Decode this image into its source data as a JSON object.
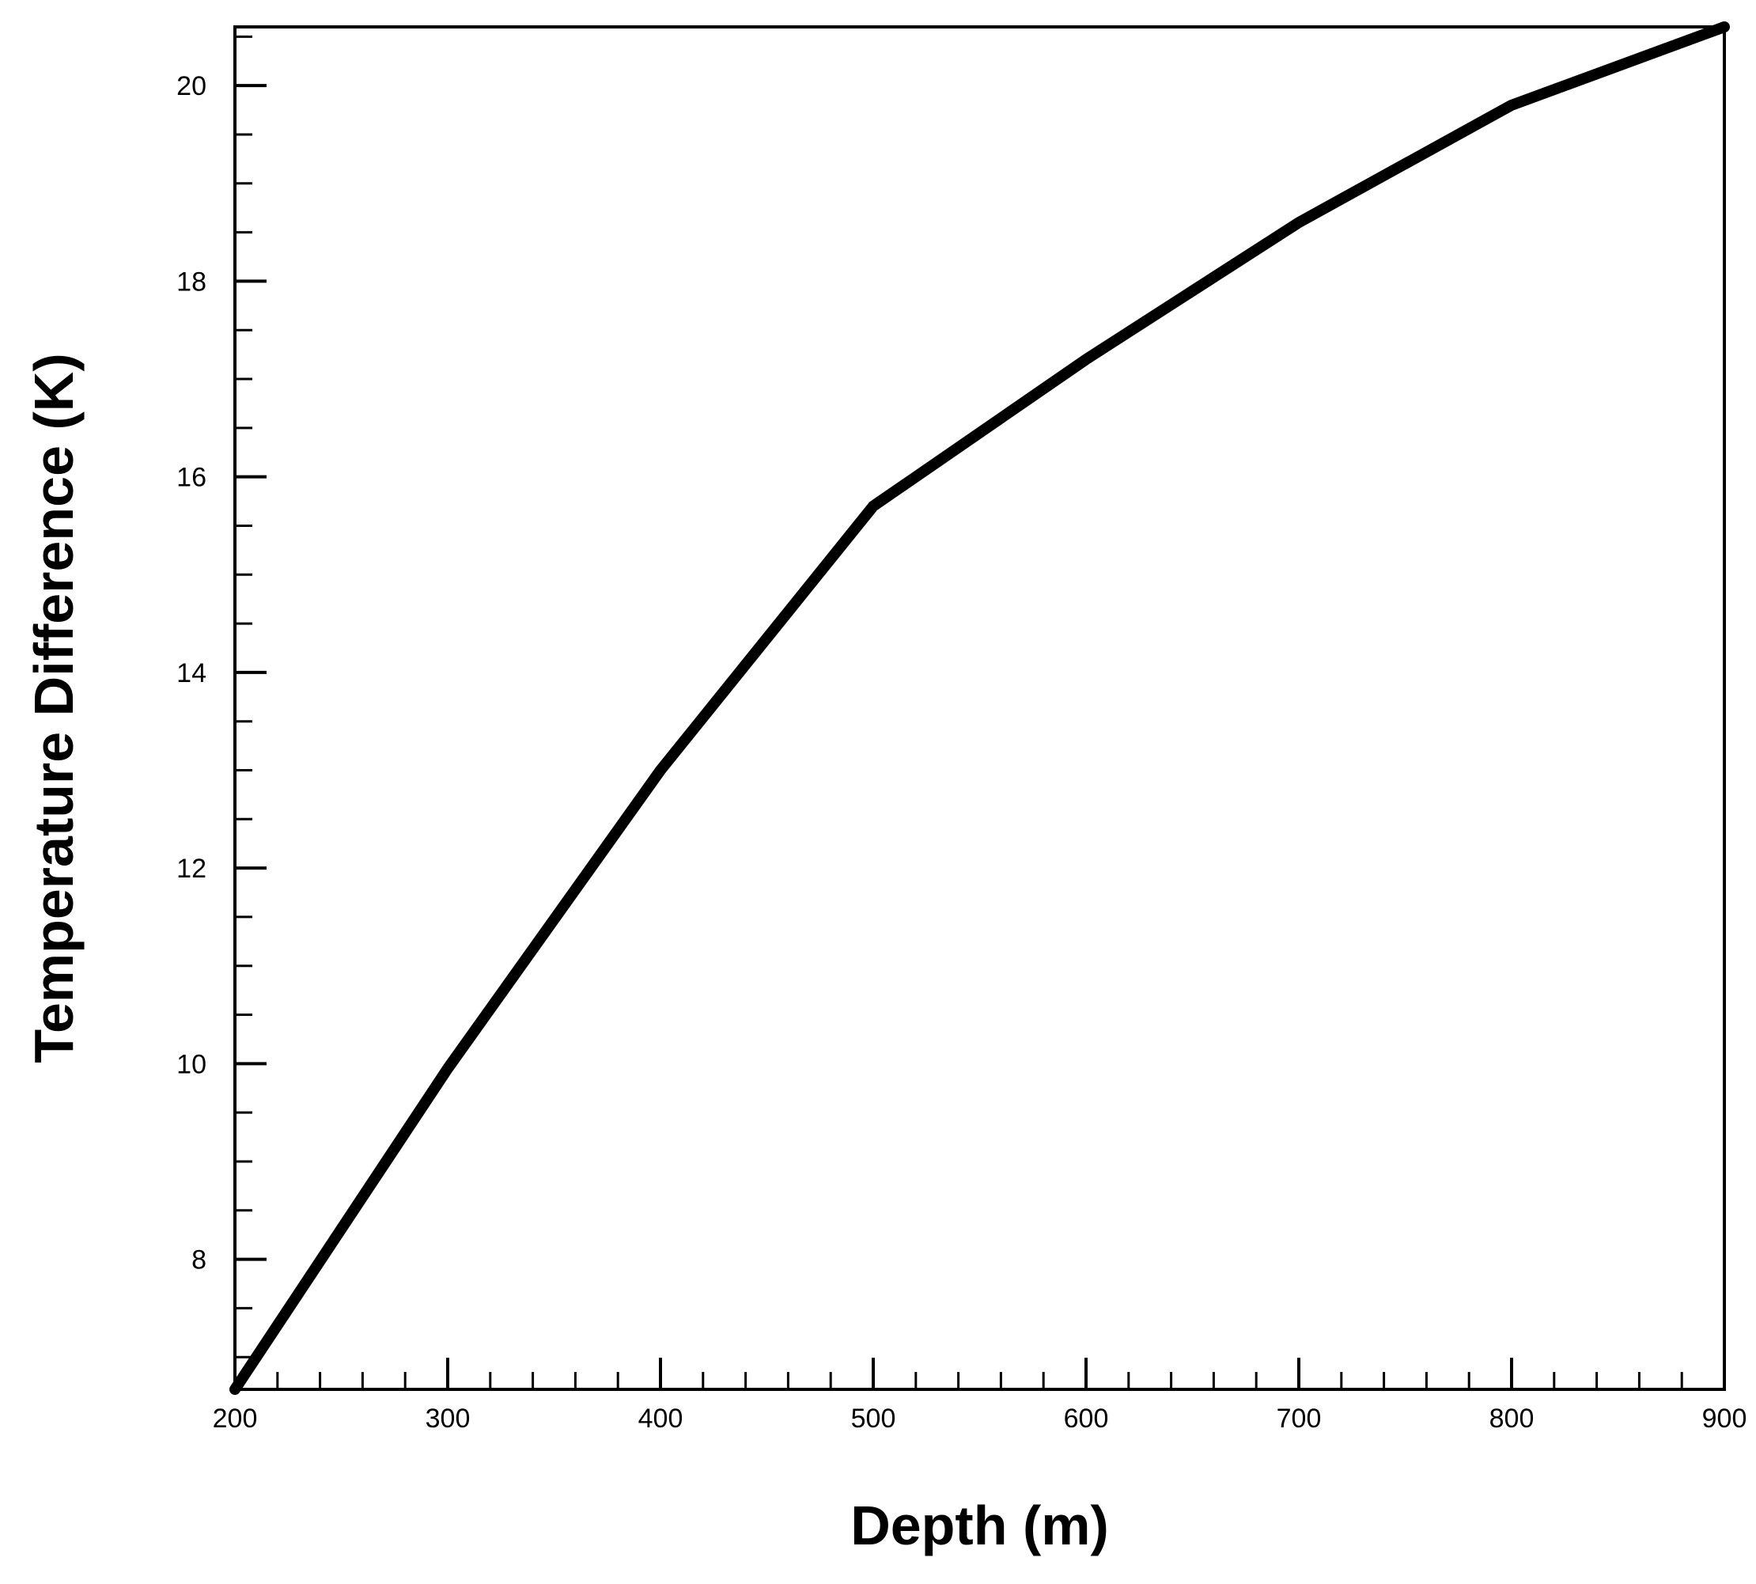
{
  "chart_data": {
    "type": "line",
    "xlabel": "Depth (m)",
    "ylabel": "Temperature Difference (K)",
    "xlim": [
      200,
      900
    ],
    "ylim": [
      6.67,
      20.6
    ],
    "x_ticks": [
      200,
      300,
      400,
      500,
      600,
      700,
      800,
      900
    ],
    "x_tick_labels": [
      "200",
      "300",
      "400",
      "500",
      "600",
      "700",
      "800",
      "900"
    ],
    "x_minor_step": 20,
    "y_ticks": [
      8,
      10,
      12,
      14,
      16,
      18,
      20
    ],
    "y_tick_labels": [
      "8",
      "10",
      "12",
      "14",
      "16",
      "18",
      "20"
    ],
    "y_minor_step": 0.5,
    "grid": false,
    "series": [
      {
        "color": "#000000",
        "x": [
          200,
          300,
          400,
          500,
          600,
          700,
          800,
          900
        ],
        "y": [
          6.67,
          9.95,
          13.0,
          15.7,
          17.2,
          18.6,
          19.8,
          20.6
        ]
      }
    ]
  }
}
